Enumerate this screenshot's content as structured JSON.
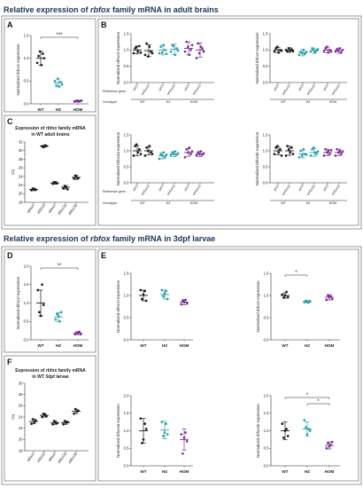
{
  "colors": {
    "title": "#1c3557",
    "WT": "#1a1a1a",
    "HZ": "#2aa0a6",
    "HOM": "#7a2e8e"
  },
  "section_titles": {
    "adult": {
      "prefix": "Relative expression of ",
      "gene": "rbfox",
      "suffix": " family mRNA in adult brains"
    },
    "larvae": {
      "prefix": "Relative expression of ",
      "gene": "rbfox",
      "suffix": " family mRNA in 3dpf larvae"
    }
  },
  "panel_letters": {
    "A": "A",
    "B": "B",
    "C": "C",
    "D": "D",
    "E": "E",
    "F": "F"
  },
  "row_labels": {
    "reference": "Reference gene:",
    "genotype": "Genotype:"
  },
  "chart_data": [
    {
      "id": "A",
      "type": "scatter",
      "ylabel": "Normalized rbfox1 expression",
      "categories": [
        "WT",
        "HZ",
        "HOM"
      ],
      "ylim": [
        0,
        1.5
      ],
      "yticks": [
        "0.0",
        "0.5",
        "1.0",
        "1.5"
      ],
      "means": [
        1.0,
        0.46,
        0.06
      ],
      "sds": [
        0.15,
        0.09,
        0.02
      ],
      "points": [
        [
          0.9,
          1.05,
          1.15,
          0.85,
          1.1,
          1.0
        ],
        [
          0.5,
          0.4,
          0.55,
          0.38,
          0.48,
          0.42
        ],
        [
          0.05,
          0.06,
          0.07,
          0.05,
          0.06,
          0.07
        ]
      ],
      "significance": [
        {
          "from": 0,
          "to": 2,
          "label": "***"
        }
      ]
    },
    {
      "id": "B1",
      "type": "scatter",
      "ylabel": "Normalized rbfox1l expression",
      "categories": [
        "rpl13",
        "eef1a1l1",
        "rpl13",
        "eef1a1l1",
        "rpl13",
        "eef1a1l1"
      ],
      "genotypes": [
        "WT",
        "HZ",
        "HOM"
      ],
      "ylim": [
        0,
        1.5
      ],
      "yticks": [
        "0.0",
        "0.5",
        "1.0",
        "1.5"
      ],
      "means": [
        1.0,
        0.98,
        1.0,
        1.02,
        1.05,
        1.0
      ],
      "sds": [
        0.12,
        0.18,
        0.15,
        0.16,
        0.2,
        0.22
      ],
      "points": [
        [
          0.9,
          1.05,
          1.1,
          0.95,
          1.12,
          0.92
        ],
        [
          0.85,
          1.2,
          0.8,
          1.1,
          0.95,
          0.9
        ],
        [
          0.9,
          1.1,
          0.92,
          1.15,
          1.0,
          0.88
        ],
        [
          0.95,
          1.15,
          1.12,
          0.85,
          1.05,
          0.98
        ],
        [
          0.95,
          1.25,
          1.1,
          0.85,
          1.0,
          1.15
        ],
        [
          0.75,
          1.2,
          0.9,
          1.1,
          1.05,
          0.95
        ]
      ]
    },
    {
      "id": "B2",
      "type": "scatter",
      "ylabel": "Normalized rbfox2 expression",
      "categories": [
        "rpl13",
        "eef1a1l1",
        "rpl13",
        "eef1a1l1",
        "rpl13",
        "eef1a1l1"
      ],
      "genotypes": [
        "WT",
        "HZ",
        "HOM"
      ],
      "ylim": [
        0,
        1.5
      ],
      "yticks": [
        "0.0",
        "0.5",
        "1.0",
        "1.5"
      ],
      "means": [
        1.0,
        1.0,
        0.92,
        0.98,
        1.0,
        0.98
      ],
      "sds": [
        0.08,
        0.07,
        0.1,
        0.08,
        0.09,
        0.08
      ],
      "points": [
        [
          0.95,
          1.05,
          1.1,
          0.92,
          1.0,
          0.98
        ],
        [
          1.0,
          0.95,
          1.05,
          0.98,
          1.02,
          0.96
        ],
        [
          0.85,
          0.95,
          0.9,
          1.0,
          0.88,
          0.94
        ],
        [
          0.95,
          1.05,
          1.0,
          0.92,
          0.98,
          1.02
        ],
        [
          0.95,
          1.05,
          1.1,
          0.92,
          1.0,
          0.95
        ],
        [
          0.95,
          1.02,
          0.98,
          1.05,
          0.92,
          1.0
        ]
      ]
    },
    {
      "id": "B3",
      "type": "scatter",
      "ylabel": "Normalized rbfox3a expression",
      "categories": [
        "rpl13",
        "eef1a1l1",
        "rpl13",
        "eef1a1l1",
        "rpl13",
        "eef1a1l1"
      ],
      "genotypes": [
        "WT",
        "HZ",
        "HOM"
      ],
      "ylim": [
        0,
        1.5
      ],
      "yticks": [
        "0.0",
        "0.5",
        "1.0",
        "1.5"
      ],
      "means": [
        1.0,
        1.0,
        0.85,
        0.9,
        0.95,
        0.9
      ],
      "sds": [
        0.15,
        0.13,
        0.1,
        0.08,
        0.12,
        0.08
      ],
      "points": [
        [
          0.85,
          1.15,
          1.2,
          0.95,
          1.05,
          0.9
        ],
        [
          0.85,
          1.1,
          1.0,
          1.15,
          0.95,
          0.9
        ],
        [
          0.75,
          0.9,
          0.85,
          0.95,
          0.8,
          0.88
        ],
        [
          0.85,
          0.95,
          0.9,
          0.98,
          0.88,
          0.92
        ],
        [
          0.8,
          1.05,
          0.95,
          1.1,
          0.9,
          0.98
        ],
        [
          0.85,
          0.95,
          0.9,
          0.98,
          0.88,
          0.92
        ]
      ]
    },
    {
      "id": "B4",
      "type": "scatter",
      "ylabel": "Normalized rbfox3b expression",
      "categories": [
        "rpl13",
        "eef1a1l1",
        "rpl13",
        "eef1a1l1",
        "rpl13",
        "eef1a1l1"
      ],
      "genotypes": [
        "WT",
        "HZ",
        "HOM"
      ],
      "ylim": [
        0,
        1.5
      ],
      "yticks": [
        "0.0",
        "0.5",
        "1.0",
        "1.5"
      ],
      "means": [
        1.0,
        1.0,
        0.9,
        0.95,
        0.95,
        0.95
      ],
      "sds": [
        0.12,
        0.14,
        0.12,
        0.12,
        0.1,
        0.1
      ],
      "points": [
        [
          0.9,
          1.1,
          1.15,
          0.95,
          1.05,
          0.85
        ],
        [
          0.85,
          1.15,
          1.05,
          0.95,
          1.1,
          0.9
        ],
        [
          0.8,
          1.0,
          0.85,
          1.05,
          0.9,
          0.88
        ],
        [
          0.85,
          1.05,
          1.1,
          0.95,
          0.9,
          0.98
        ],
        [
          0.85,
          1.05,
          0.95,
          1.0,
          0.9,
          1.02
        ],
        [
          0.85,
          1.05,
          0.95,
          1.0,
          0.9,
          0.98
        ]
      ]
    },
    {
      "id": "C",
      "type": "scatter",
      "title": "Expression of rbfox family mRNA in WT adult brains",
      "ylabel": "Cq",
      "categories": [
        "rbfox1",
        "rbfox1l",
        "rbfox2",
        "rbfox3a",
        "rbfox3b"
      ],
      "ylim": [
        18,
        32
      ],
      "yticks": [
        "18",
        "20",
        "22",
        "24",
        "26",
        "28",
        "30",
        "32"
      ],
      "means": [
        21.0,
        31.0,
        22.5,
        21.5,
        23.8
      ],
      "sds": [
        0.3,
        0.2,
        0.3,
        0.4,
        0.5
      ],
      "points": [
        [
          20.8,
          21.2,
          21.0,
          20.9
        ],
        [
          31.0,
          30.8,
          31.2,
          31.1
        ],
        [
          22.3,
          22.7,
          22.5,
          22.4
        ],
        [
          21.2,
          21.8,
          21.5,
          21.0
        ],
        [
          23.5,
          24.2,
          23.8,
          23.6
        ]
      ]
    },
    {
      "id": "D",
      "type": "scatter",
      "ylabel": "Normalized rbfox1l expression",
      "categories": [
        "WT",
        "HZ",
        "HOM"
      ],
      "ylim": [
        0,
        2.0
      ],
      "yticks": [
        "0.0",
        "0.5",
        "1.0",
        "1.5",
        "2.0"
      ],
      "means": [
        1.0,
        0.62,
        0.18
      ],
      "sds": [
        0.35,
        0.12,
        0.04
      ],
      "points": [
        [
          1.35,
          0.75,
          0.65,
          1.5,
          0.95
        ],
        [
          0.55,
          0.7,
          0.65,
          0.5,
          0.75
        ],
        [
          0.15,
          0.2,
          0.18,
          0.22,
          0.15
        ]
      ],
      "significance": [
        {
          "from": 0,
          "to": 2,
          "label": "**"
        }
      ]
    },
    {
      "id": "E1",
      "type": "scatter",
      "ylabel": "Normalized rbfox1l expression",
      "categories": [
        "WT",
        "HZ",
        "HOM"
      ],
      "ylim": [
        0,
        1.5
      ],
      "yticks": [
        "0.0",
        "0.5",
        "1.0",
        "1.5"
      ],
      "means": [
        1.0,
        1.02,
        0.85
      ],
      "sds": [
        0.12,
        0.1,
        0.06
      ],
      "points": [
        [
          1.12,
          0.92,
          1.02,
          1.1,
          0.88
        ],
        [
          1.12,
          0.98,
          1.05,
          1.1,
          0.92
        ],
        [
          0.8,
          0.88,
          0.85,
          0.9,
          0.82
        ]
      ]
    },
    {
      "id": "E2",
      "type": "scatter",
      "ylabel": "Normalized rbfox2 expression",
      "categories": [
        "WT",
        "HZ",
        "HOM"
      ],
      "ylim": [
        0,
        1.5
      ],
      "yticks": [
        "0.0",
        "0.5",
        "1.0",
        "1.5"
      ],
      "means": [
        1.0,
        0.86,
        0.96
      ],
      "sds": [
        0.06,
        0.03,
        0.06
      ],
      "points": [
        [
          1.02,
          0.95,
          1.0,
          1.08,
          0.96
        ],
        [
          0.85,
          0.88,
          0.86,
          0.84,
          0.87
        ],
        [
          0.9,
          1.0,
          0.96,
          0.98,
          0.92
        ]
      ],
      "significance": [
        {
          "from": 0,
          "to": 1,
          "label": "*"
        }
      ]
    },
    {
      "id": "E3",
      "type": "scatter",
      "ylabel": "Normalized rbfox3a expression",
      "categories": [
        "WT",
        "HZ",
        "HOM"
      ],
      "ylim": [
        0,
        2.0
      ],
      "yticks": [
        "0.0",
        "0.5",
        "1.0",
        "1.5",
        "2.0"
      ],
      "means": [
        1.0,
        1.02,
        0.75
      ],
      "sds": [
        0.35,
        0.25,
        0.3
      ],
      "points": [
        [
          1.35,
          0.65,
          0.75,
          1.2,
          1.05
        ],
        [
          1.25,
          0.85,
          0.95,
          1.2,
          0.9
        ],
        [
          0.9,
          0.35,
          0.8,
          0.95,
          0.7
        ]
      ]
    },
    {
      "id": "E4",
      "type": "scatter",
      "ylabel": "Normalized rbfox3b expression",
      "categories": [
        "WT",
        "HZ",
        "HOM"
      ],
      "ylim": [
        0,
        2.0
      ],
      "yticks": [
        "0.0",
        "0.5",
        "1.0",
        "1.5",
        "2.0"
      ],
      "means": [
        1.0,
        1.05,
        0.58
      ],
      "sds": [
        0.25,
        0.2,
        0.1
      ],
      "points": [
        [
          1.2,
          0.8,
          1.0,
          1.05,
          0.85
        ],
        [
          1.3,
          1.1,
          0.9,
          1.05,
          1.0
        ],
        [
          0.5,
          0.65,
          0.55,
          0.6,
          0.68
        ]
      ],
      "significance": [
        {
          "from": 0,
          "to": 2,
          "label": "*"
        },
        {
          "from": 1,
          "to": 2,
          "label": "*"
        }
      ]
    },
    {
      "id": "F",
      "type": "scatter",
      "title": "Expression of rbfox family mRNA in WT 3dpf larvae",
      "ylabel": "Cq",
      "categories": [
        "rbfox1",
        "rbfox1l",
        "rbfox2",
        "rbfox3a",
        "rbfox3b"
      ],
      "ylim": [
        18,
        30
      ],
      "yticks": [
        "18",
        "20",
        "22",
        "24",
        "26",
        "28",
        "30"
      ],
      "means": [
        23.2,
        24.3,
        23.0,
        23.0,
        25.0
      ],
      "sds": [
        0.4,
        0.3,
        0.3,
        0.3,
        0.4
      ],
      "points": [
        [
          22.8,
          23.6,
          23.1,
          23.4
        ],
        [
          24.0,
          24.6,
          24.4,
          24.1
        ],
        [
          22.7,
          23.3,
          23.0,
          22.9
        ],
        [
          22.7,
          23.3,
          23.0,
          23.1
        ],
        [
          24.6,
          25.4,
          25.0,
          25.1
        ]
      ]
    }
  ]
}
